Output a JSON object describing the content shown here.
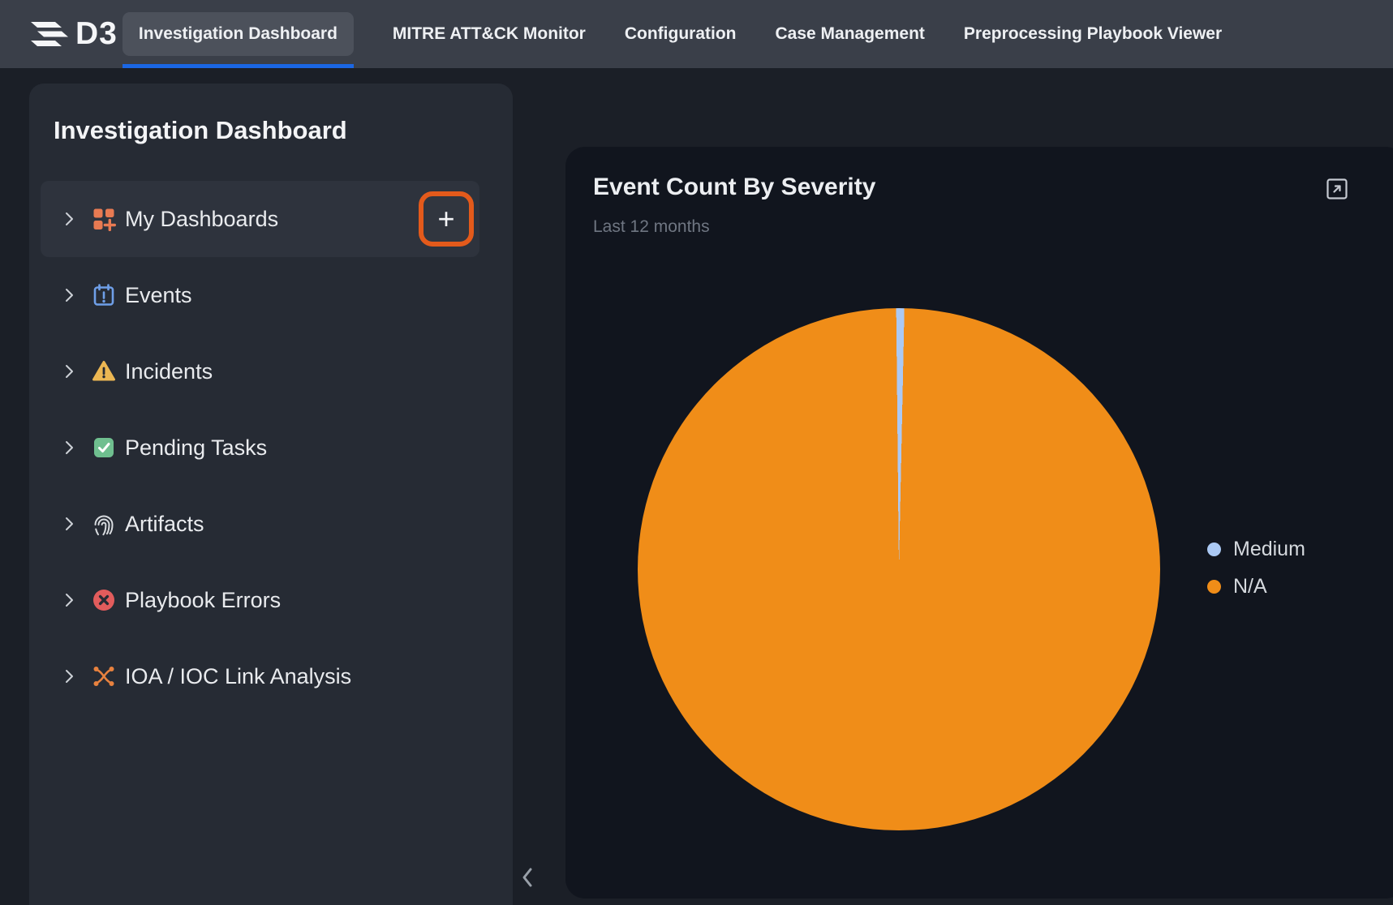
{
  "brand": {
    "logo_text": "D3",
    "logo_icon": "d3-wing-icon"
  },
  "nav": {
    "tabs": [
      {
        "label": "Investigation Dashboard",
        "active": true
      },
      {
        "label": "MITRE ATT&CK Monitor",
        "active": false
      },
      {
        "label": "Configuration",
        "active": false
      },
      {
        "label": "Case Management",
        "active": false
      },
      {
        "label": "Preprocessing Playbook Viewer",
        "active": false
      }
    ]
  },
  "sidebar": {
    "title": "Investigation Dashboard",
    "add_button_label": "+",
    "collapse_icon": "chevron-left-icon",
    "items": [
      {
        "label": "My Dashboards",
        "icon": "dashboard-grid-icon",
        "highlighted": true
      },
      {
        "label": "Events",
        "icon": "calendar-alert-icon",
        "highlighted": false
      },
      {
        "label": "Incidents",
        "icon": "warning-triangle-icon",
        "highlighted": false
      },
      {
        "label": "Pending Tasks",
        "icon": "task-check-icon",
        "highlighted": false
      },
      {
        "label": "Artifacts",
        "icon": "fingerprint-icon",
        "highlighted": false
      },
      {
        "label": "Playbook Errors",
        "icon": "error-circle-icon",
        "highlighted": false
      },
      {
        "label": "IOA / IOC Link Analysis",
        "icon": "link-analysis-icon",
        "highlighted": false
      }
    ]
  },
  "panel": {
    "title": "Event Count By Severity",
    "subtitle": "Last 12 months",
    "expand_icon": "open-in-new-icon"
  },
  "chart_data": {
    "type": "pie",
    "title": "Event Count By Severity",
    "subtitle": "Last 12 months",
    "legend_position": "right",
    "start_angle_deg": -0.6,
    "slices": [
      {
        "label": "Medium",
        "percent": 0.5,
        "color": "#abc9f4"
      },
      {
        "label": "N/A",
        "percent": 99.5,
        "color": "#f08d18"
      }
    ]
  },
  "colors": {
    "accent_blue": "#1b67e4",
    "highlight_ring_orange": "#e35a1b",
    "pie_orange": "#f08d18",
    "pie_blue": "#abc9f4",
    "nav_bg": "#3a3f49",
    "page_bg": "#1b1f27",
    "sidebar_bg": "#262b34",
    "panel_bg": "#11151e"
  }
}
